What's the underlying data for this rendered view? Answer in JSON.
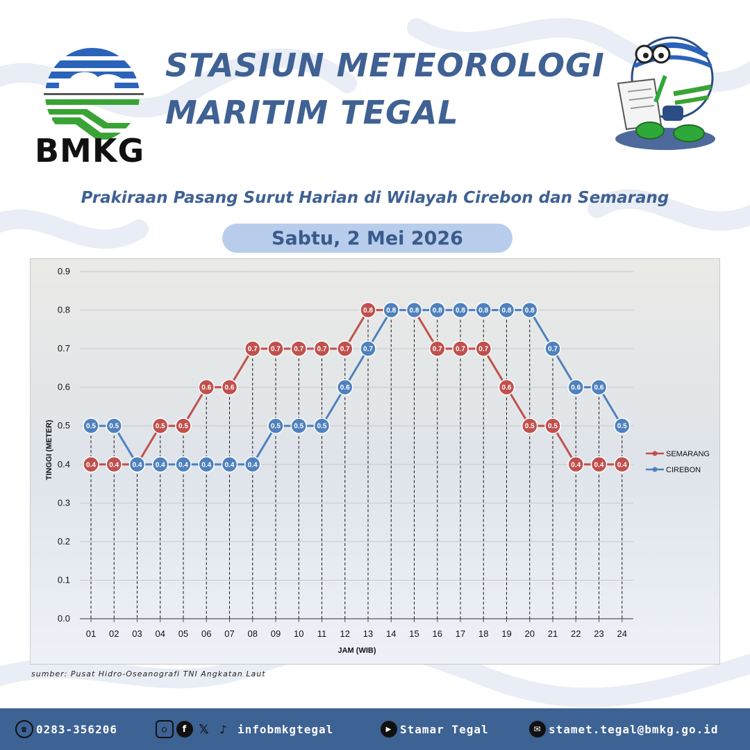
{
  "header": {
    "logo_text": "BMKG",
    "title_line1": "STASIUN METEOROLOGI",
    "title_line2": "MARITIM TEGAL",
    "subtitle": "Prakiraan Pasang Surut Harian di Wilayah Cirebon dan Semarang",
    "date": "Sabtu, 2 Mei 2026",
    "logo_icon": "bmkg-logo-icon",
    "mascot_icon": "mascot-illustration-icon"
  },
  "chart_data": {
    "type": "line",
    "title": "",
    "xlabel": "JAM (WIB)",
    "ylabel": "TINGGI (METER)",
    "ylim": [
      0,
      0.9
    ],
    "yticks": [
      "0.0",
      "0.1",
      "0.2",
      "0.3",
      "0.4",
      "0.5",
      "0.6",
      "0.7",
      "0.8",
      "0.9"
    ],
    "categories": [
      "01",
      "02",
      "03",
      "04",
      "05",
      "06",
      "07",
      "08",
      "09",
      "10",
      "11",
      "12",
      "13",
      "14",
      "15",
      "16",
      "17",
      "18",
      "19",
      "20",
      "21",
      "22",
      "23",
      "24"
    ],
    "legend_position": "right",
    "grid": true,
    "series": [
      {
        "name": "SEMARANG",
        "color": "#c0504d",
        "values": [
          0.4,
          0.4,
          0.4,
          0.5,
          0.5,
          0.6,
          0.6,
          0.7,
          0.7,
          0.7,
          0.7,
          0.7,
          0.8,
          0.8,
          0.8,
          0.7,
          0.7,
          0.7,
          0.6,
          0.5,
          0.5,
          0.4,
          0.4,
          0.4
        ]
      },
      {
        "name": "CIREBON",
        "color": "#4f81bd",
        "values": [
          0.5,
          0.5,
          0.4,
          0.4,
          0.4,
          0.4,
          0.4,
          0.4,
          0.5,
          0.5,
          0.5,
          0.6,
          0.7,
          0.8,
          0.8,
          0.8,
          0.8,
          0.8,
          0.8,
          0.8,
          0.7,
          0.6,
          0.6,
          0.5
        ]
      }
    ]
  },
  "source": "sumber: Pusat Hidro-Oseanografi TNI Angkatan Laut",
  "footer": {
    "phone": "0283-356206",
    "social_handle": "infobmkgtegal",
    "youtube": "Stamar Tegal",
    "email": "stamet.tegal@bmkg.go.id"
  }
}
